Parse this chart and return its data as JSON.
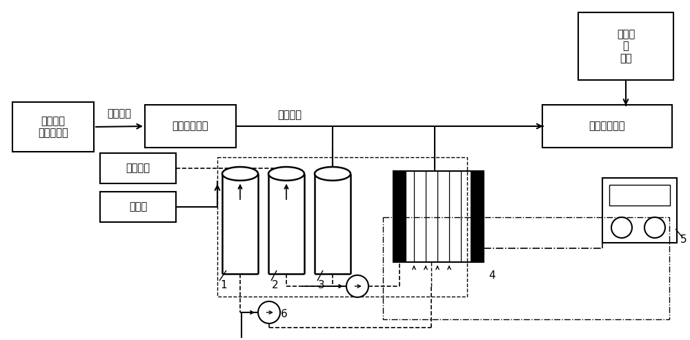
{
  "bg": "#ffffff",
  "figsize": [
    10.0,
    4.93
  ],
  "dpi": 100,
  "xlim": [
    0,
    1000
  ],
  "ylim": [
    493,
    0
  ]
}
